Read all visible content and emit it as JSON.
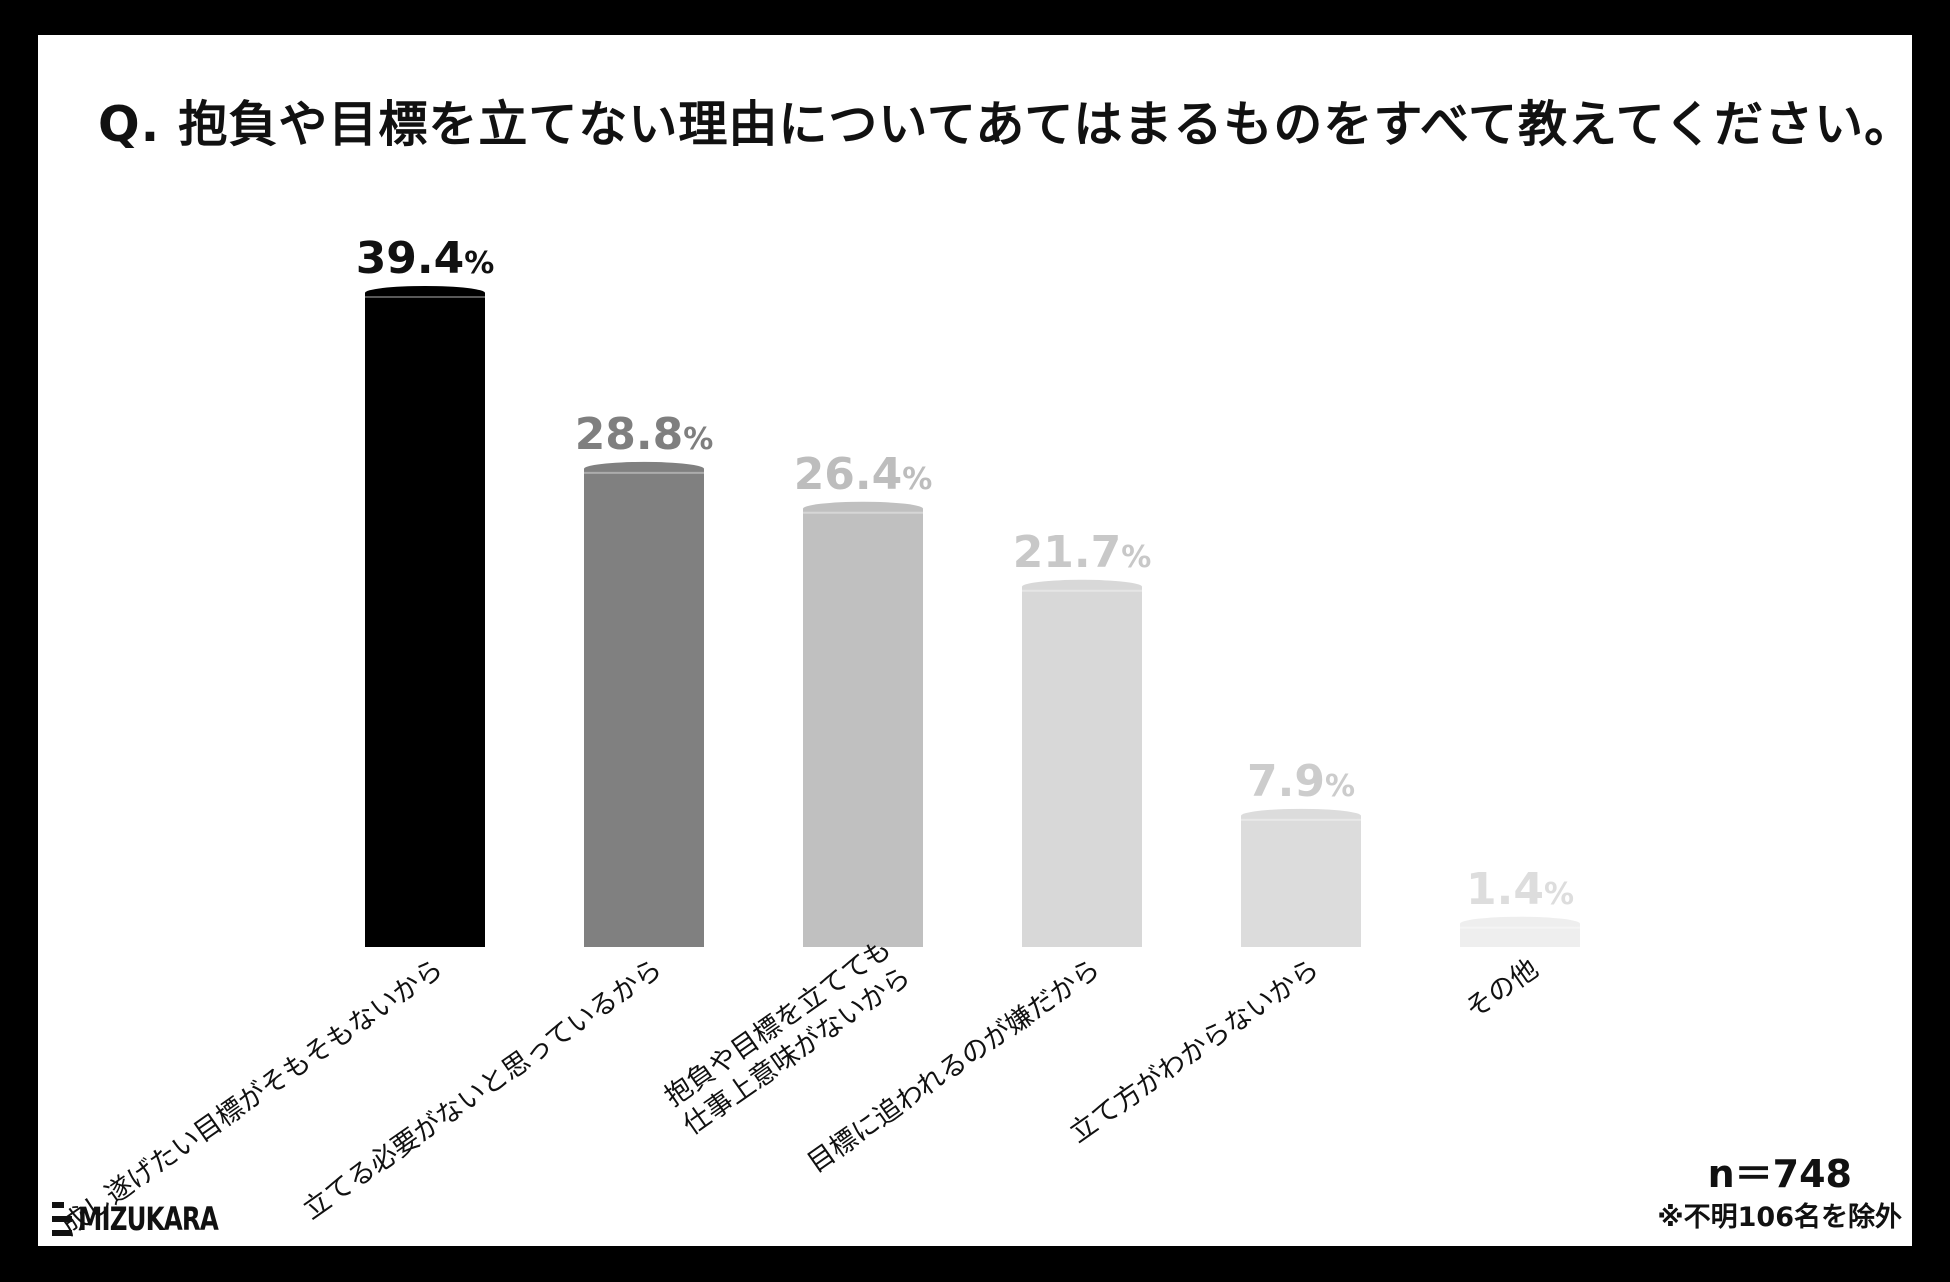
{
  "title": "Q. 抱負や目標を立てない理由についてあてはまるものをすべて教えてください。",
  "sample_size": "n＝748",
  "note": "※不明106名を除外",
  "logo": "MIZUKARA",
  "chart_data": {
    "type": "bar",
    "categories": [
      "成し遂げたい目標がそもそもないから",
      "立てる必要がないと思っているから",
      "抱負や目標を立てても\n仕事上意味がないから",
      "目標に追われるのが嫌だから",
      "立て方がわからないから",
      "その他"
    ],
    "values": [
      39.4,
      28.8,
      26.4,
      21.7,
      7.9,
      1.4
    ],
    "value_labels": [
      "39.4",
      "28.8",
      "26.4",
      "21.7",
      "7.9",
      "1.4"
    ],
    "unit": "%",
    "colors": [
      "#000000",
      "#808080",
      "#c0c0c0",
      "#d8d8d8",
      "#dcdcdc",
      "#eeeeee"
    ],
    "label_colors": [
      "#111111",
      "#7f7f7f",
      "#bdbdbd",
      "#c8c8c8",
      "#cccccc",
      "#dddddd"
    ],
    "ylim": [
      0,
      40
    ],
    "grid": false,
    "legend": "none"
  }
}
